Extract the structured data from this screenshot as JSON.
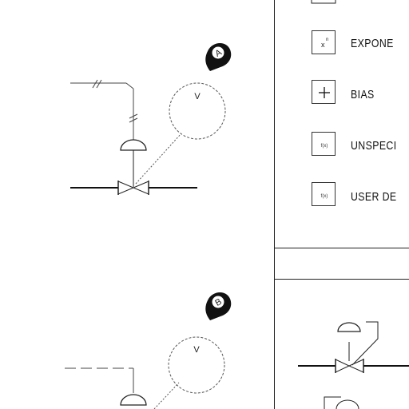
{
  "legend": {
    "items": [
      {
        "symbol_icon": "exponential-icon",
        "symbol_text": "xⁿ",
        "label": "EXPONE"
      },
      {
        "symbol_icon": "plus-icon",
        "symbol_text": "+",
        "label": "BIAS"
      },
      {
        "symbol_icon": "function-icon",
        "symbol_text": "f(x)",
        "label": "UNSPECI"
      },
      {
        "symbol_icon": "function-icon",
        "symbol_text": "f(x)",
        "label": "USER DE"
      }
    ]
  },
  "diagrams": [
    {
      "instrument_tag": "V",
      "marker_icon": "map-pin-icon",
      "marker_text": "A"
    },
    {
      "instrument_tag": "V",
      "marker_icon": "map-pin-icon",
      "marker_text": "B"
    }
  ]
}
